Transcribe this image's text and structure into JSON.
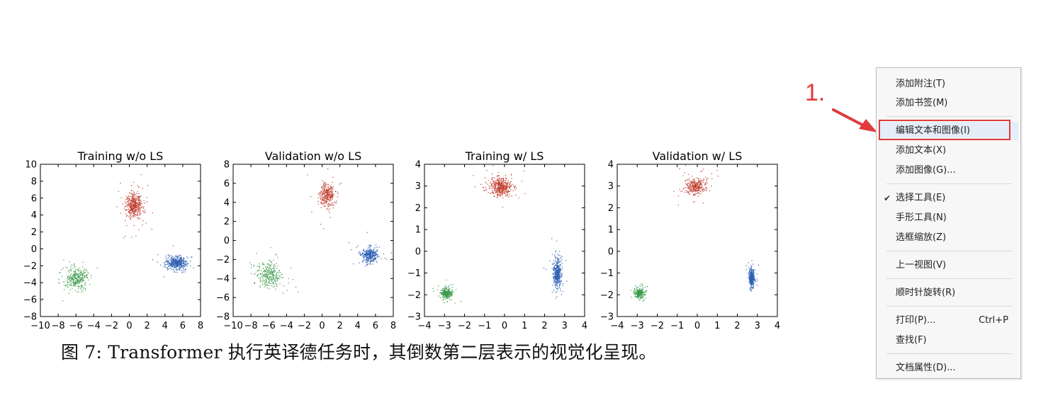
{
  "figure": {
    "caption": "图 7: Transformer 执行英译德任务时，其倒数第二层表示的视觉化呈现。",
    "panels": [
      {
        "title": "Training w/o LS",
        "xticks": [
          "−10",
          "−8",
          "−6",
          "−4",
          "−2",
          "0",
          "2",
          "4",
          "6",
          "8"
        ],
        "yticks": [
          "10",
          "8",
          "6",
          "4",
          "2",
          "0",
          "−2",
          "−4",
          "−6",
          "−8"
        ]
      },
      {
        "title": "Validation w/o LS",
        "xticks": [
          "−10",
          "−8",
          "−6",
          "−4",
          "−2",
          "0",
          "2",
          "4",
          "6",
          "8"
        ],
        "yticks": [
          "8",
          "6",
          "4",
          "2",
          "0",
          "−2",
          "−4",
          "−6",
          "−8"
        ]
      },
      {
        "title": "Training w/ LS",
        "xticks": [
          "−4",
          "−3",
          "−2",
          "−1",
          "0",
          "1",
          "2",
          "3",
          "4"
        ],
        "yticks": [
          "4",
          "3",
          "2",
          "1",
          "0",
          "−1",
          "−2",
          "−3"
        ]
      },
      {
        "title": "Validation w/ LS",
        "xticks": [
          "−4",
          "−3",
          "−2",
          "−1",
          "0",
          "1",
          "2",
          "3",
          "4"
        ],
        "yticks": [
          "4",
          "3",
          "2",
          "1",
          "0",
          "−1",
          "−2",
          "−3"
        ]
      }
    ]
  },
  "chart_data": [
    {
      "type": "scatter",
      "title": "Training w/o LS",
      "xlim": [
        -10,
        8
      ],
      "ylim": [
        -8,
        10
      ],
      "series": [
        {
          "name": "red",
          "color": "#c0392b",
          "center": [
            0.5,
            5.2
          ],
          "spread": [
            0.8,
            1.3
          ],
          "count": 420
        },
        {
          "name": "blue",
          "color": "#2e5fb3",
          "center": [
            5.2,
            -1.6
          ],
          "spread": [
            1.0,
            0.7
          ],
          "count": 420
        },
        {
          "name": "green",
          "color": "#3a9a48",
          "center": [
            -6.0,
            -3.5
          ],
          "spread": [
            1.1,
            1.1
          ],
          "count": 300
        }
      ]
    },
    {
      "type": "scatter",
      "title": "Validation w/o LS",
      "xlim": [
        -10,
        8
      ],
      "ylim": [
        -8,
        8
      ],
      "series": [
        {
          "name": "red",
          "color": "#c0392b",
          "center": [
            0.5,
            4.8
          ],
          "spread": [
            0.7,
            1.1
          ],
          "count": 300
        },
        {
          "name": "blue",
          "color": "#2e5fb3",
          "center": [
            5.3,
            -1.5
          ],
          "spread": [
            0.8,
            0.7
          ],
          "count": 320
        },
        {
          "name": "green",
          "color": "#3a9a48",
          "center": [
            -6.0,
            -3.6
          ],
          "spread": [
            1.2,
            1.2
          ],
          "count": 280
        }
      ]
    },
    {
      "type": "scatter",
      "title": "Training w/ LS",
      "xlim": [
        -4,
        4
      ],
      "ylim": [
        -3,
        4
      ],
      "series": [
        {
          "name": "red",
          "color": "#c0392b",
          "center": [
            -0.2,
            3.0
          ],
          "spread": [
            0.5,
            0.35
          ],
          "count": 420
        },
        {
          "name": "blue",
          "color": "#2e5fb3",
          "center": [
            2.6,
            -1.0
          ],
          "spread": [
            0.18,
            0.55
          ],
          "count": 420
        },
        {
          "name": "green",
          "color": "#3a9a48",
          "center": [
            -2.9,
            -1.9
          ],
          "spread": [
            0.25,
            0.2
          ],
          "count": 260
        }
      ]
    },
    {
      "type": "scatter",
      "title": "Validation w/ LS",
      "xlim": [
        -4,
        4
      ],
      "ylim": [
        -3,
        4
      ],
      "series": [
        {
          "name": "red",
          "color": "#c0392b",
          "center": [
            -0.1,
            3.0
          ],
          "spread": [
            0.45,
            0.35
          ],
          "count": 300
        },
        {
          "name": "blue",
          "color": "#2e5fb3",
          "center": [
            2.7,
            -1.2
          ],
          "spread": [
            0.12,
            0.4
          ],
          "count": 320
        },
        {
          "name": "green",
          "color": "#3a9a48",
          "center": [
            -2.9,
            -1.9
          ],
          "spread": [
            0.22,
            0.2
          ],
          "count": 240
        }
      ]
    }
  ],
  "annotation": {
    "step_label": "1.",
    "color": "#e23a3a"
  },
  "context_menu": {
    "items": [
      {
        "label": "添加附注(T)"
      },
      {
        "label": "添加书签(M)"
      },
      {
        "label": "编辑文本和图像(I)"
      },
      {
        "label": "添加文本(X)"
      },
      {
        "label": "添加图像(G)..."
      },
      {
        "label": "选择工具(E)",
        "checked": "✔"
      },
      {
        "label": "手形工具(N)"
      },
      {
        "label": "选框缩放(Z)"
      },
      {
        "label": "上一视图(V)"
      },
      {
        "label": "顺时针旋转(R)"
      },
      {
        "label": "打印(P)...",
        "shortcut": "Ctrl+P"
      },
      {
        "label": "查找(F)"
      },
      {
        "label": "文档属性(D)..."
      }
    ]
  }
}
